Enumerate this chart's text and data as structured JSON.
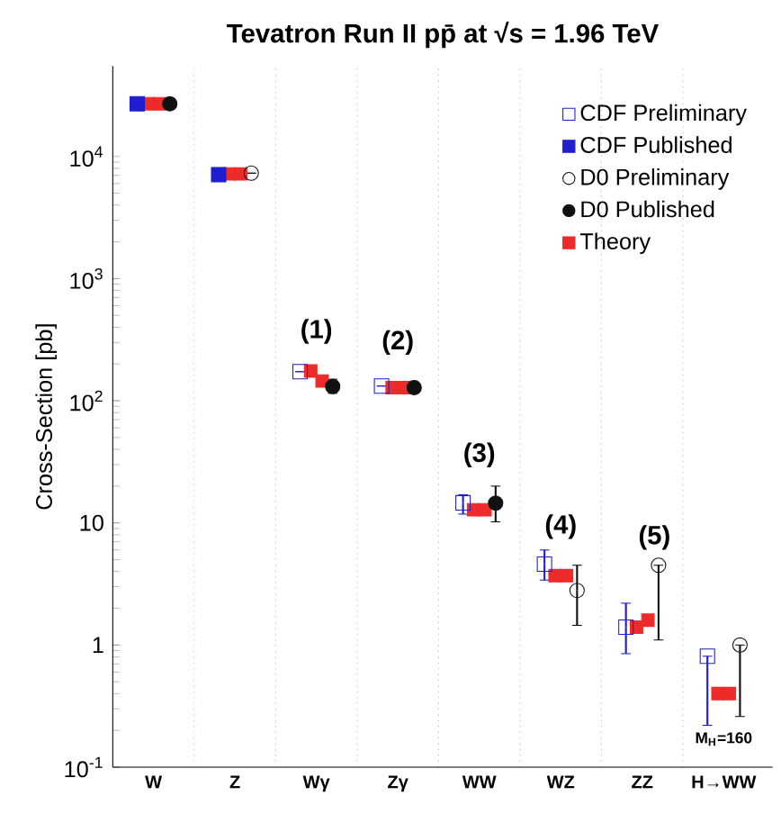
{
  "chart_data": {
    "type": "scatter",
    "title": "Tevatron Run II pp̄ at √s = 1.96 TeV",
    "ylabel": "Cross-Section [pb]",
    "categories": [
      "W",
      "Z",
      "Wγ",
      "Zγ",
      "WW",
      "WZ",
      "ZZ",
      "H→WW"
    ],
    "log": "y",
    "ylim": [
      0.1,
      55000
    ],
    "yticks": [
      {
        "value": 0.1,
        "label": "10$^{-1}$"
      },
      1,
      10,
      {
        "value": 100,
        "label": "10$^{2}$"
      },
      {
        "value": 1000,
        "label": "10$^{3}$"
      },
      {
        "value": 10000,
        "label": "10$^{4}$"
      }
    ],
    "grid": "x",
    "legend": "top right",
    "series": [
      {
        "name": "CDF Preliminary",
        "color": "#1f1fd0",
        "marker": "square-open",
        "values": [
          null,
          null,
          173,
          132,
          14.6,
          4.6,
          1.4,
          0.81
        ],
        "errors": [
          null,
          null,
          null,
          null,
          [
            11.8,
            17
          ],
          [
            3.4,
            6.0
          ],
          [
            0.85,
            2.2
          ],
          [
            0.22,
            0.81
          ]
        ]
      },
      {
        "name": "CDF Published",
        "color": "#1f1fd0",
        "marker": "square",
        "values": [
          27000,
          7100,
          null,
          null,
          null,
          null,
          null,
          null
        ]
      },
      {
        "name": "D0 Preliminary",
        "color": "#111111",
        "marker": "circle-open",
        "values": [
          null,
          7300,
          null,
          null,
          null,
          2.8,
          4.5,
          1.0
        ],
        "errors": [
          null,
          null,
          null,
          null,
          null,
          [
            1.45,
            4.5
          ],
          [
            1.1,
            4.5
          ],
          [
            0.26,
            1.0
          ]
        ]
      },
      {
        "name": "D0 Published",
        "color": "#111111",
        "marker": "circle",
        "values": [
          27000,
          null,
          131,
          128,
          14.5,
          null,
          null,
          null
        ],
        "errors": [
          null,
          null,
          [
            115,
            150
          ],
          null,
          [
            10.2,
            20
          ],
          null,
          null,
          null
        ]
      },
      {
        "name": "Theory",
        "color": "#ee2b2b",
        "marker": "square",
        "values": [
          27000,
          7200,
          175,
          128,
          12.8,
          3.7,
          1.4,
          0.4
        ]
      },
      {
        "color": "#ee2b2b",
        "marker": "square",
        "values": [
          27000,
          7200,
          145,
          128,
          12.8,
          3.7,
          1.6,
          0.4
        ]
      }
    ],
    "annotations": [
      "(1)",
      "(2)",
      "(3)",
      "(4)",
      "(5)",
      "M$_{H}$=160"
    ]
  }
}
